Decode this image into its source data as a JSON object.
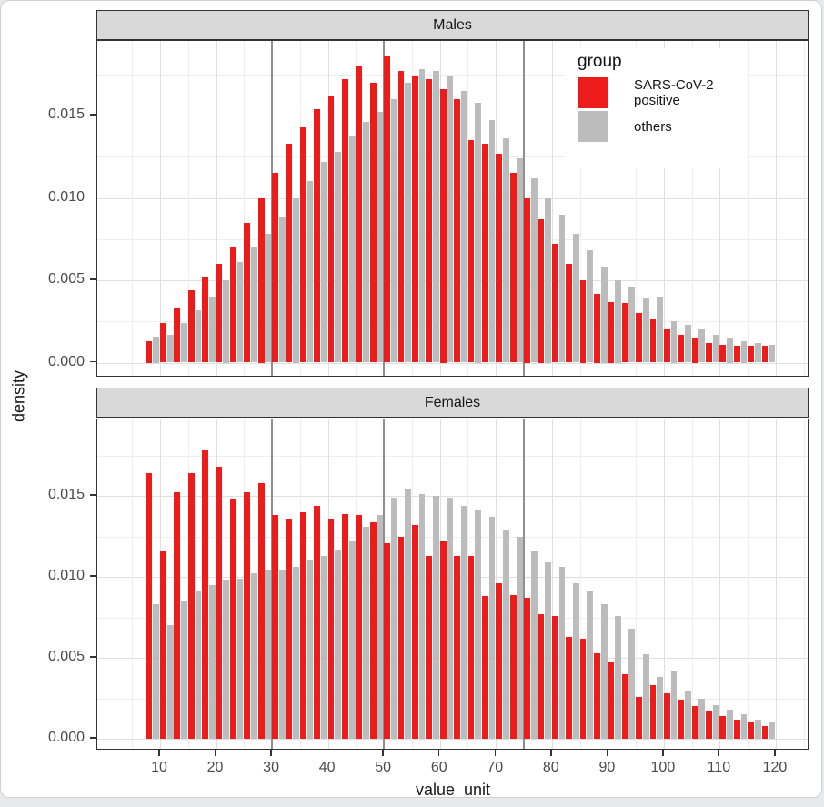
{
  "figure": {
    "facet_titles": [
      "Males",
      "Females"
    ],
    "x_axis_title": "value_unit",
    "y_axis_title": "density",
    "legend": {
      "title": "group",
      "entries": [
        {
          "label": "SARS-CoV-2 positive",
          "color": "#ee1b1b"
        },
        {
          "label": "others",
          "color": "#bcbcbc"
        }
      ]
    }
  },
  "chart_data": {
    "type": "bar",
    "subtype": "dodged-histogram-faceted",
    "title": "",
    "xlabel": "value_unit",
    "ylabel": "density",
    "grid": true,
    "legend_position": "inside-top-right-of-Males-panel",
    "x_ticks": [
      10,
      20,
      30,
      40,
      50,
      60,
      70,
      80,
      90,
      100,
      110,
      120
    ],
    "x_minor_ticks": [
      5,
      15,
      25,
      35,
      45,
      55,
      65,
      75,
      85,
      95,
      105,
      115,
      125
    ],
    "y_tick_values": [
      0,
      0.005,
      0.01,
      0.015
    ],
    "y_tick_labels": [
      "0.000",
      "0.005",
      "0.010",
      "0.015"
    ],
    "y_minor_ticks": [
      0.0025,
      0.0075,
      0.0125,
      0.0175
    ],
    "reference_lines_x": [
      30,
      50,
      75
    ],
    "xlim": [
      0,
      126
    ],
    "ylim": [
      0,
      0.0195
    ],
    "bin_width": 2.5,
    "bin_centers": [
      8.75,
      11.25,
      13.75,
      16.25,
      18.75,
      21.25,
      23.75,
      26.25,
      28.75,
      31.25,
      33.75,
      36.25,
      38.75,
      41.25,
      43.75,
      46.25,
      48.75,
      51.25,
      53.75,
      56.25,
      58.75,
      61.25,
      63.75,
      66.25,
      68.75,
      71.25,
      73.75,
      76.25,
      78.75,
      81.25,
      83.75,
      86.25,
      88.75,
      91.25,
      93.75,
      96.25,
      98.75,
      101.25,
      103.75,
      106.25,
      108.75,
      111.25,
      113.75,
      116.25,
      118.75
    ],
    "facets": [
      {
        "name": "Males",
        "series": [
          {
            "name": "SARS-CoV-2 positive",
            "color": "#ee1b1b",
            "values": [
              0.0013,
              0.0024,
              0.0033,
              0.0044,
              0.0052,
              0.006,
              0.007,
              0.0085,
              0.01,
              0.0115,
              0.0133,
              0.0143,
              0.0154,
              0.0162,
              0.0172,
              0.018,
              0.017,
              0.0186,
              0.0177,
              0.0174,
              0.0172,
              0.0166,
              0.016,
              0.0135,
              0.0133,
              0.0127,
              0.0115,
              0.01,
              0.0087,
              0.0072,
              0.006,
              0.005,
              0.0042,
              0.0037,
              0.0036,
              0.003,
              0.0026,
              0.002,
              0.0017,
              0.0015,
              0.0012,
              0.0011,
              0.001,
              0.001,
              0.001
            ]
          },
          {
            "name": "others",
            "color": "#bcbcbc",
            "values": [
              0.0016,
              0.0017,
              0.0024,
              0.0032,
              0.004,
              0.005,
              0.0061,
              0.007,
              0.0078,
              0.0088,
              0.01,
              0.011,
              0.0122,
              0.0128,
              0.0138,
              0.0146,
              0.0152,
              0.016,
              0.017,
              0.0178,
              0.0177,
              0.0174,
              0.0165,
              0.0158,
              0.0147,
              0.0136,
              0.0124,
              0.0112,
              0.01,
              0.009,
              0.0078,
              0.0068,
              0.0058,
              0.005,
              0.0046,
              0.0039,
              0.004,
              0.0025,
              0.0023,
              0.002,
              0.0017,
              0.0015,
              0.0013,
              0.0012,
              0.0011
            ]
          }
        ]
      },
      {
        "name": "Females",
        "series": [
          {
            "name": "SARS-CoV-2 positive",
            "color": "#ee1b1b",
            "values": [
              0.0164,
              0.0116,
              0.0152,
              0.0164,
              0.0178,
              0.0168,
              0.0148,
              0.0152,
              0.0158,
              0.0138,
              0.0136,
              0.014,
              0.0144,
              0.0136,
              0.0139,
              0.0138,
              0.0134,
              0.0121,
              0.0125,
              0.0132,
              0.0113,
              0.0122,
              0.0113,
              0.0113,
              0.0088,
              0.0096,
              0.0089,
              0.0087,
              0.0077,
              0.0076,
              0.0063,
              0.0062,
              0.0053,
              0.0047,
              0.004,
              0.0026,
              0.0033,
              0.0028,
              0.0024,
              0.002,
              0.0017,
              0.0014,
              0.0012,
              0.001,
              0.0008
            ]
          },
          {
            "name": "others",
            "color": "#bcbcbc",
            "values": [
              0.0083,
              0.007,
              0.0085,
              0.0091,
              0.0095,
              0.0098,
              0.0099,
              0.0102,
              0.0104,
              0.0104,
              0.0106,
              0.011,
              0.0113,
              0.0117,
              0.0122,
              0.0131,
              0.0138,
              0.0149,
              0.0154,
              0.0151,
              0.015,
              0.0149,
              0.0144,
              0.0141,
              0.0137,
              0.0129,
              0.0125,
              0.0116,
              0.0109,
              0.0106,
              0.0096,
              0.0091,
              0.0083,
              0.0076,
              0.0068,
              0.0052,
              0.0038,
              0.0042,
              0.0029,
              0.0025,
              0.0021,
              0.0018,
              0.0015,
              0.0012,
              0.001
            ]
          }
        ]
      }
    ]
  }
}
